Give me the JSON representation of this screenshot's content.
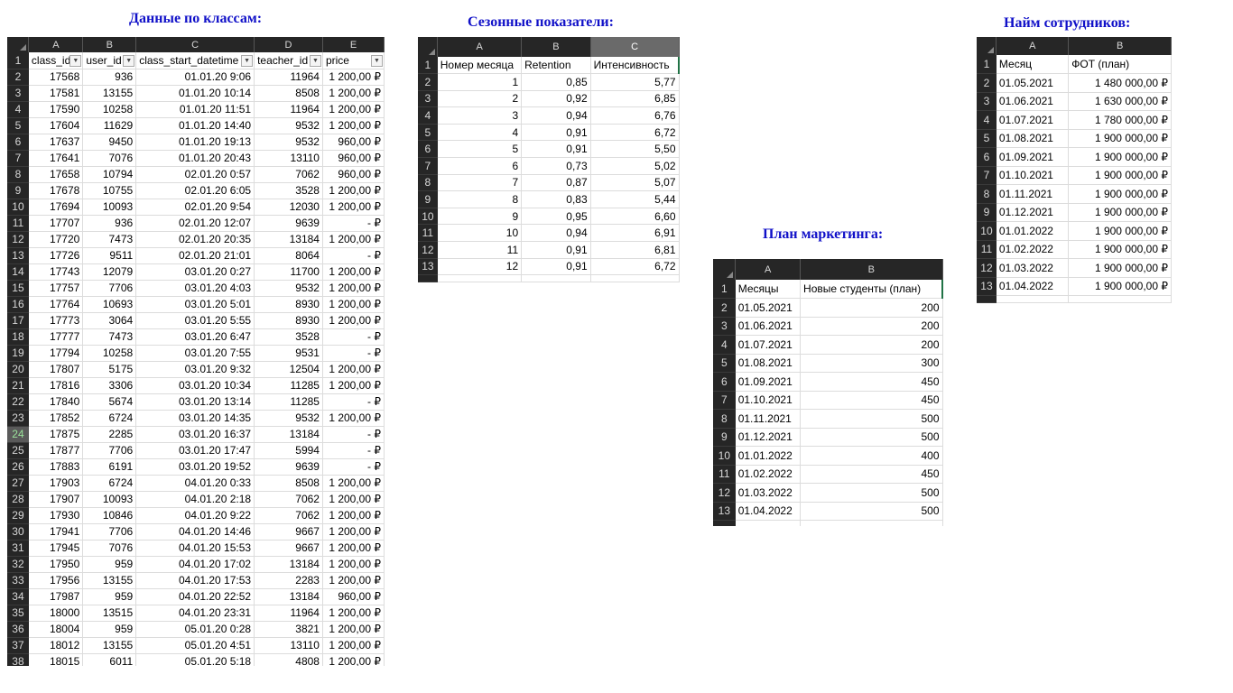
{
  "panels": {
    "classes": {
      "title": "Данные по классам:",
      "col_letters": [
        "A",
        "B",
        "C",
        "D",
        "E"
      ],
      "headers": [
        "class_id",
        "user_id",
        "class_start_datetime",
        "teacher_id",
        "price"
      ],
      "rows": [
        [
          "17568",
          "936",
          "01.01.20 9:06",
          "11964",
          "1 200,00 ₽"
        ],
        [
          "17581",
          "13155",
          "01.01.20 10:14",
          "8508",
          "1 200,00 ₽"
        ],
        [
          "17590",
          "10258",
          "01.01.20 11:51",
          "11964",
          "1 200,00 ₽"
        ],
        [
          "17604",
          "11629",
          "01.01.20 14:40",
          "9532",
          "1 200,00 ₽"
        ],
        [
          "17637",
          "9450",
          "01.01.20 19:13",
          "9532",
          "960,00 ₽"
        ],
        [
          "17641",
          "7076",
          "01.01.20 20:43",
          "13110",
          "960,00 ₽"
        ],
        [
          "17658",
          "10794",
          "02.01.20 0:57",
          "7062",
          "960,00 ₽"
        ],
        [
          "17678",
          "10755",
          "02.01.20 6:05",
          "3528",
          "1 200,00 ₽"
        ],
        [
          "17694",
          "10093",
          "02.01.20 9:54",
          "12030",
          "1 200,00 ₽"
        ],
        [
          "17707",
          "936",
          "02.01.20 12:07",
          "9639",
          "-    ₽"
        ],
        [
          "17720",
          "7473",
          "02.01.20 20:35",
          "13184",
          "1 200,00 ₽"
        ],
        [
          "17726",
          "9511",
          "02.01.20 21:01",
          "8064",
          "-    ₽"
        ],
        [
          "17743",
          "12079",
          "03.01.20 0:27",
          "11700",
          "1 200,00 ₽"
        ],
        [
          "17757",
          "7706",
          "03.01.20 4:03",
          "9532",
          "1 200,00 ₽"
        ],
        [
          "17764",
          "10693",
          "03.01.20 5:01",
          "8930",
          "1 200,00 ₽"
        ],
        [
          "17773",
          "3064",
          "03.01.20 5:55",
          "8930",
          "1 200,00 ₽"
        ],
        [
          "17777",
          "7473",
          "03.01.20 6:47",
          "3528",
          "-    ₽"
        ],
        [
          "17794",
          "10258",
          "03.01.20 7:55",
          "9531",
          "-    ₽"
        ],
        [
          "17807",
          "5175",
          "03.01.20 9:32",
          "12504",
          "1 200,00 ₽"
        ],
        [
          "17816",
          "3306",
          "03.01.20 10:34",
          "11285",
          "1 200,00 ₽"
        ],
        [
          "17840",
          "5674",
          "03.01.20 13:14",
          "11285",
          "-    ₽"
        ],
        [
          "17852",
          "6724",
          "03.01.20 14:35",
          "9532",
          "1 200,00 ₽"
        ],
        [
          "17875",
          "2285",
          "03.01.20 16:37",
          "13184",
          "-    ₽"
        ],
        [
          "17877",
          "7706",
          "03.01.20 17:47",
          "5994",
          "-    ₽"
        ],
        [
          "17883",
          "6191",
          "03.01.20 19:52",
          "9639",
          "-    ₽"
        ],
        [
          "17903",
          "6724",
          "04.01.20 0:33",
          "8508",
          "1 200,00 ₽"
        ],
        [
          "17907",
          "10093",
          "04.01.20 2:18",
          "7062",
          "1 200,00 ₽"
        ],
        [
          "17930",
          "10846",
          "04.01.20 9:22",
          "7062",
          "1 200,00 ₽"
        ],
        [
          "17941",
          "7706",
          "04.01.20 14:46",
          "9667",
          "1 200,00 ₽"
        ],
        [
          "17945",
          "7076",
          "04.01.20 15:53",
          "9667",
          "1 200,00 ₽"
        ],
        [
          "17950",
          "959",
          "04.01.20 17:02",
          "13184",
          "1 200,00 ₽"
        ],
        [
          "17956",
          "13155",
          "04.01.20 17:53",
          "2283",
          "1 200,00 ₽"
        ],
        [
          "17987",
          "959",
          "04.01.20 22:52",
          "13184",
          "960,00 ₽"
        ],
        [
          "18000",
          "13515",
          "04.01.20 23:31",
          "11964",
          "1 200,00 ₽"
        ],
        [
          "18004",
          "959",
          "05.01.20 0:28",
          "3821",
          "1 200,00 ₽"
        ],
        [
          "18012",
          "13155",
          "05.01.20 4:51",
          "13110",
          "1 200,00 ₽"
        ],
        [
          "18015",
          "6011",
          "05.01.20 5:18",
          "4808",
          "1 200,00 ₽"
        ]
      ]
    },
    "seasonal": {
      "title": "Сезонные показатели:",
      "col_letters": [
        "A",
        "B",
        "C"
      ],
      "headers": [
        "Номер месяца",
        "Retention",
        "Интенсивность"
      ],
      "rows": [
        [
          "1",
          "0,85",
          "5,77"
        ],
        [
          "2",
          "0,92",
          "6,85"
        ],
        [
          "3",
          "0,94",
          "6,76"
        ],
        [
          "4",
          "0,91",
          "6,72"
        ],
        [
          "5",
          "0,91",
          "5,50"
        ],
        [
          "6",
          "0,73",
          "5,02"
        ],
        [
          "7",
          "0,87",
          "5,07"
        ],
        [
          "8",
          "0,83",
          "5,44"
        ],
        [
          "9",
          "0,95",
          "6,60"
        ],
        [
          "10",
          "0,94",
          "6,91"
        ],
        [
          "11",
          "0,91",
          "6,81"
        ],
        [
          "12",
          "0,91",
          "6,72"
        ]
      ]
    },
    "marketing": {
      "title": "План маркетинга:",
      "col_letters": [
        "A",
        "B"
      ],
      "headers": [
        "Месяцы",
        "Новые студенты (план)"
      ],
      "rows": [
        [
          "01.05.2021",
          "200"
        ],
        [
          "01.06.2021",
          "200"
        ],
        [
          "01.07.2021",
          "200"
        ],
        [
          "01.08.2021",
          "300"
        ],
        [
          "01.09.2021",
          "450"
        ],
        [
          "01.10.2021",
          "450"
        ],
        [
          "01.11.2021",
          "500"
        ],
        [
          "01.12.2021",
          "500"
        ],
        [
          "01.01.2022",
          "400"
        ],
        [
          "01.02.2022",
          "450"
        ],
        [
          "01.03.2022",
          "500"
        ],
        [
          "01.04.2022",
          "500"
        ]
      ]
    },
    "hiring": {
      "title": "Найм сотрудников:",
      "col_letters": [
        "A",
        "B"
      ],
      "headers": [
        "Месяц",
        "ФОТ (план)"
      ],
      "rows": [
        [
          "01.05.2021",
          "1 480 000,00 ₽"
        ],
        [
          "01.06.2021",
          "1 630 000,00 ₽"
        ],
        [
          "01.07.2021",
          "1 780 000,00 ₽"
        ],
        [
          "01.08.2021",
          "1 900 000,00 ₽"
        ],
        [
          "01.09.2021",
          "1 900 000,00 ₽"
        ],
        [
          "01.10.2021",
          "1 900 000,00 ₽"
        ],
        [
          "01.11.2021",
          "1 900 000,00 ₽"
        ],
        [
          "01.12.2021",
          "1 900 000,00 ₽"
        ],
        [
          "01.01.2022",
          "1 900 000,00 ₽"
        ],
        [
          "01.02.2022",
          "1 900 000,00 ₽"
        ],
        [
          "01.03.2022",
          "1 900 000,00 ₽"
        ],
        [
          "01.04.2022",
          "1 900 000,00 ₽"
        ]
      ]
    }
  }
}
